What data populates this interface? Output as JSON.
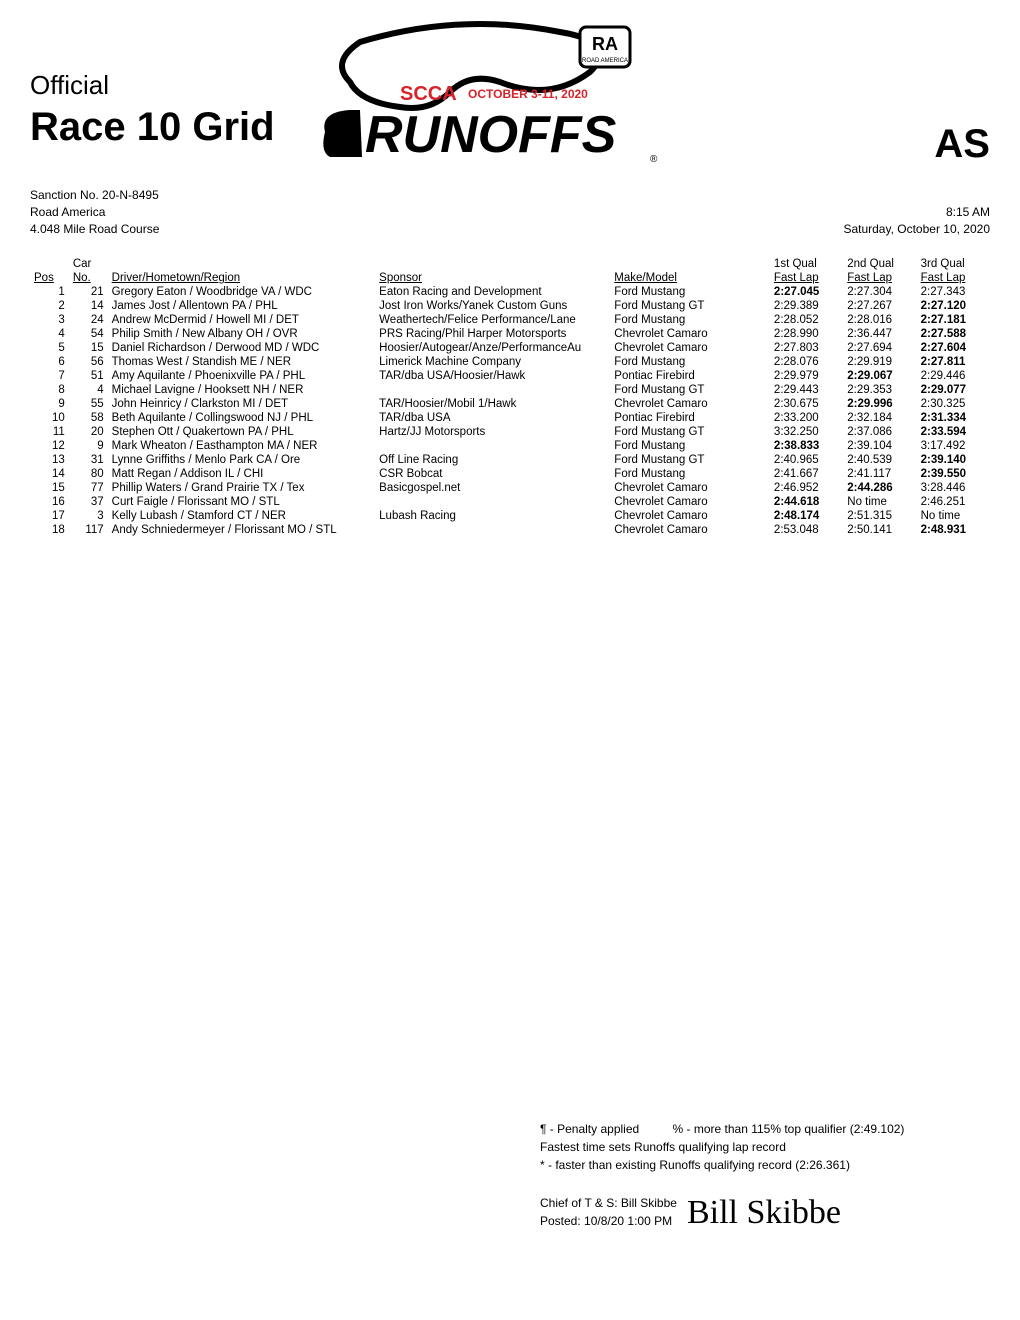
{
  "header": {
    "official": "Official",
    "title": "Race 10 Grid",
    "class_code": "AS",
    "sanction": "Sanction No. 20-N-8495",
    "track": "Road America",
    "course": "4.048 Mile Road Course",
    "time": "8:15 AM",
    "date": "Saturday, October 10, 2020",
    "event_dates": "OCTOBER 3-11, 2020",
    "event_name": "RUNOFFS",
    "org": "SCCA"
  },
  "columns": {
    "pos": "Pos",
    "car_sup": "Car",
    "no": "No.",
    "driver": "Driver/Hometown/Region",
    "sponsor": "Sponsor",
    "make": "Make/Model",
    "q1_sup": "1st Qual",
    "q2_sup": "2nd Qual",
    "q3_sup": "3rd Qual",
    "fast": "Fast Lap"
  },
  "rows": [
    {
      "pos": "1",
      "no": "21",
      "driver": "Gregory Eaton / Woodbridge VA / WDC",
      "sponsor": "Eaton Racing and Development",
      "make": "Ford Mustang",
      "q1": "2:27.045",
      "q2": "2:27.304",
      "q3": "2:27.343",
      "best": 1
    },
    {
      "pos": "2",
      "no": "14",
      "driver": "James Jost / Allentown PA / PHL",
      "sponsor": "Jost Iron Works/Yanek Custom Guns",
      "make": "Ford Mustang GT",
      "q1": "2:29.389",
      "q2": "2:27.267",
      "q3": "2:27.120",
      "best": 3
    },
    {
      "pos": "3",
      "no": "24",
      "driver": "Andrew McDermid / Howell MI / DET",
      "sponsor": "Weathertech/Felice Performance/Lane",
      "make": "Ford Mustang",
      "q1": "2:28.052",
      "q2": "2:28.016",
      "q3": "2:27.181",
      "best": 3
    },
    {
      "pos": "4",
      "no": "54",
      "driver": "Philip Smith / New Albany OH / OVR",
      "sponsor": "PRS Racing/Phil Harper Motorsports",
      "make": "Chevrolet Camaro",
      "q1": "2:28.990",
      "q2": "2:36.447",
      "q3": "2:27.588",
      "best": 3
    },
    {
      "pos": "5",
      "no": "15",
      "driver": "Daniel Richardson / Derwood MD / WDC",
      "sponsor": "Hoosier/Autogear/Anze/PerformanceAu",
      "make": "Chevrolet Camaro",
      "q1": "2:27.803",
      "q2": "2:27.694",
      "q3": "2:27.604",
      "best": 3
    },
    {
      "pos": "6",
      "no": "56",
      "driver": "Thomas West / Standish ME / NER",
      "sponsor": "Limerick Machine Company",
      "make": "Ford Mustang",
      "q1": "2:28.076",
      "q2": "2:29.919",
      "q3": "2:27.811",
      "best": 3
    },
    {
      "pos": "7",
      "no": "51",
      "driver": "Amy Aquilante / Phoenixville PA / PHL",
      "sponsor": "TAR/dba USA/Hoosier/Hawk",
      "make": "Pontiac Firebird",
      "q1": "2:29.979",
      "q2": "2:29.067",
      "q3": "2:29.446",
      "best": 2
    },
    {
      "pos": "8",
      "no": "4",
      "driver": "Michael Lavigne / Hooksett NH / NER",
      "sponsor": "",
      "make": "Ford Mustang GT",
      "q1": "2:29.443",
      "q2": "2:29.353",
      "q3": "2:29.077",
      "best": 3
    },
    {
      "pos": "9",
      "no": "55",
      "driver": "John Heinricy / Clarkston MI / DET",
      "sponsor": "TAR/Hoosier/Mobil 1/Hawk",
      "make": "Chevrolet Camaro",
      "q1": "2:30.675",
      "q2": "2:29.996",
      "q3": "2:30.325",
      "best": 2
    },
    {
      "pos": "10",
      "no": "58",
      "driver": "Beth Aquilante / Collingswood NJ / PHL",
      "sponsor": "TAR/dba USA",
      "make": "Pontiac Firebird",
      "q1": "2:33.200",
      "q2": "2:32.184",
      "q3": "2:31.334",
      "best": 3
    },
    {
      "pos": "11",
      "no": "20",
      "driver": "Stephen Ott / Quakertown PA / PHL",
      "sponsor": "Hartz/JJ Motorsports",
      "make": "Ford Mustang GT",
      "q1": "3:32.250",
      "q2": "2:37.086",
      "q3": "2:33.594",
      "best": 3
    },
    {
      "pos": "12",
      "no": "9",
      "driver": "Mark Wheaton / Easthampton MA / NER",
      "sponsor": "",
      "make": "Ford Mustang",
      "q1": "2:38.833",
      "q2": "2:39.104",
      "q3": "3:17.492",
      "best": 1
    },
    {
      "pos": "13",
      "no": "31",
      "driver": "Lynne Griffiths / Menlo Park CA / Ore",
      "sponsor": "Off Line Racing",
      "make": "Ford Mustang GT",
      "q1": "2:40.965",
      "q2": "2:40.539",
      "q3": "2:39.140",
      "best": 3
    },
    {
      "pos": "14",
      "no": "80",
      "driver": "Matt Regan / Addison IL / CHI",
      "sponsor": "CSR Bobcat",
      "make": "Ford Mustang",
      "q1": "2:41.667",
      "q2": "2:41.117",
      "q3": "2:39.550",
      "best": 3
    },
    {
      "pos": "15",
      "no": "77",
      "driver": "Phillip Waters / Grand Prairie TX / Tex",
      "sponsor": "Basicgospel.net",
      "make": "Chevrolet Camaro",
      "q1": "2:46.952",
      "q2": "2:44.286",
      "q3": "3:28.446",
      "best": 2
    },
    {
      "pos": "16",
      "no": "37",
      "driver": "Curt Faigle / Florissant MO / STL",
      "sponsor": "",
      "make": "Chevrolet Camaro",
      "q1": "2:44.618",
      "q2": "No time",
      "q3": "2:46.251",
      "best": 1
    },
    {
      "pos": "17",
      "no": "3",
      "driver": "Kelly Lubash / Stamford CT / NER",
      "sponsor": "Lubash Racing",
      "make": "Chevrolet Camaro",
      "q1": "2:48.174",
      "q2": "2:51.315",
      "q3": "No time",
      "best": 1
    },
    {
      "pos": "18",
      "no": "117",
      "driver": "Andy Schniedermeyer / Florissant MO / STL",
      "sponsor": "",
      "make": "Chevrolet Camaro",
      "q1": "2:53.048",
      "q2": "2:50.141",
      "q3": "2:48.931",
      "best": 3
    }
  ],
  "footer": {
    "penalty": "¶ - Penalty applied",
    "percent": "% - more than 115% top qualifier (2:49.102)",
    "record1": "Fastest time sets Runoffs qualifying lap record",
    "record2": "* - faster than existing Runoffs qualifying record (2:26.361)",
    "chief": "Chief of T & S: Bill Skibbe",
    "posted": "Posted: 10/8/20 1:00 PM",
    "signature": "Bill Skibbe"
  },
  "style": {
    "text_color": "#000000",
    "bg_color": "#ffffff",
    "accent_red": "#d8232a",
    "font_body_pt": 12,
    "font_title_pt": 40,
    "font_official_pt": 26
  }
}
